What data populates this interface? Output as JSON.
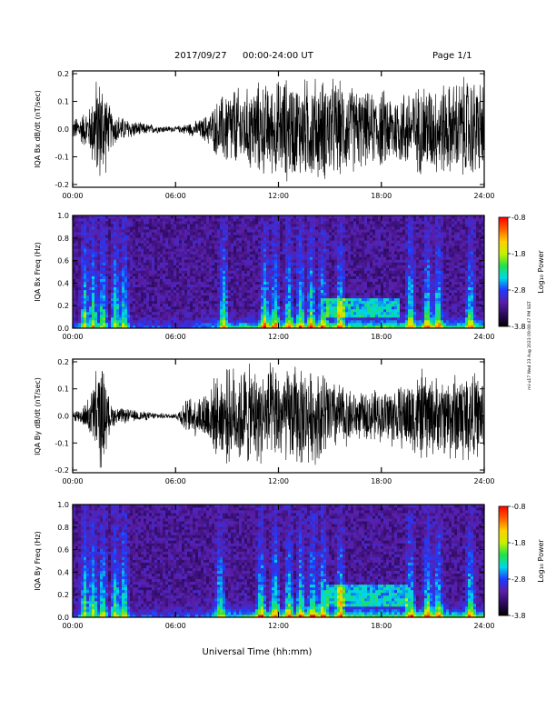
{
  "header": {
    "date": "2017/09/27",
    "time_range": "00:00-24:00 UT",
    "page": "Page 1/1"
  },
  "xlabel": "Universal Time (hh:mm)",
  "side_stamp": "mi-u17 Wed 23 Aug 2023 09:08:47 PM SGT",
  "colors": {
    "waveform": "#000000",
    "spectrogram_background": "#2a1660",
    "colormap": [
      "#000000",
      "#2b0a5e",
      "#5a1ea8",
      "#1f3bff",
      "#00d8e8",
      "#22e04a",
      "#c8f000",
      "#ffd000",
      "#ff6000",
      "#ff0000"
    ]
  },
  "chart_data": [
    {
      "type": "line",
      "ylabel": "IQA Bx dB/dt (nT/sec)",
      "x_ticks": [
        "00:00",
        "06:00",
        "12:00",
        "18:00",
        "24:00"
      ],
      "xlim": [
        0,
        24
      ],
      "y_ticks": [
        "0.2",
        "0.1",
        "0.0",
        "-0.1",
        "-0.2"
      ],
      "y_tick_values": [
        0.2,
        0.1,
        0.0,
        -0.1,
        -0.2
      ],
      "ylim": [
        -0.21,
        0.21
      ],
      "envelope": {
        "hours": [
          0,
          0.5,
          1.0,
          1.3,
          1.5,
          1.75,
          1.9,
          2.0,
          2.3,
          2.6,
          3.0,
          3.5,
          4.0,
          5.0,
          6.0,
          6.8,
          7.5,
          8.0,
          8.5,
          9.0,
          9.5,
          10.0,
          10.5,
          11.0,
          11.5,
          12.0,
          12.5,
          13.0,
          13.5,
          14.0,
          14.5,
          15.0,
          15.5,
          16.0,
          16.5,
          17.0,
          17.5,
          18.0,
          18.5,
          19.0,
          19.5,
          20.0,
          20.5,
          21.0,
          21.5,
          22.0,
          22.5,
          23.0,
          23.5,
          24.0
        ],
        "amplitude": [
          0.04,
          0.06,
          0.09,
          0.2,
          0.21,
          0.21,
          0.2,
          0.12,
          0.07,
          0.06,
          0.045,
          0.035,
          0.025,
          0.015,
          0.01,
          0.025,
          0.04,
          0.07,
          0.12,
          0.16,
          0.17,
          0.15,
          0.18,
          0.19,
          0.17,
          0.2,
          0.21,
          0.19,
          0.2,
          0.21,
          0.2,
          0.21,
          0.19,
          0.18,
          0.17,
          0.15,
          0.14,
          0.16,
          0.15,
          0.14,
          0.17,
          0.16,
          0.2,
          0.17,
          0.19,
          0.18,
          0.2,
          0.21,
          0.2,
          0.19
        ]
      }
    },
    {
      "type": "heatmap",
      "ylabel": "IQA Bx Freq (Hz)",
      "x_ticks": [
        "00:00",
        "06:00",
        "12:00",
        "18:00",
        "24:00"
      ],
      "xlim": [
        0,
        24
      ],
      "y_ticks": [
        "1.0",
        "0.8",
        "0.6",
        "0.4",
        "0.2",
        "0.0"
      ],
      "y_tick_values": [
        1.0,
        0.8,
        0.6,
        0.4,
        0.2,
        0.0
      ],
      "ylim": [
        0,
        1.0
      ],
      "colorbar": {
        "label": "Log₁₀ Power",
        "ticks": [
          "-0.8",
          "-1.8",
          "-2.8",
          "-3.8"
        ],
        "tick_values": [
          -0.8,
          -1.8,
          -2.8,
          -3.8
        ],
        "range": [
          -3.8,
          -0.8
        ]
      },
      "bursts_hours": [
        0.7,
        1.2,
        1.75,
        2.5,
        3.0,
        8.8,
        11.2,
        11.8,
        12.6,
        13.3,
        13.9,
        14.6,
        15.6,
        19.7,
        20.7,
        21.3,
        23.2
      ],
      "band": {
        "hour_start": 14.8,
        "hour_end": 19.0,
        "freq_low": 0.1,
        "freq_high": 0.28
      }
    },
    {
      "type": "line",
      "ylabel": "IQA By dB/dt (nT/sec)",
      "x_ticks": [
        "00:00",
        "06:00",
        "12:00",
        "18:00",
        "24:00"
      ],
      "xlim": [
        0,
        24
      ],
      "y_ticks": [
        "0.2",
        "0.1",
        "0.0",
        "-0.1",
        "-0.2"
      ],
      "y_tick_values": [
        0.2,
        0.1,
        0.0,
        -0.1,
        -0.2
      ],
      "ylim": [
        -0.21,
        0.21
      ],
      "envelope": {
        "hours": [
          0,
          0.5,
          1.0,
          1.3,
          1.5,
          1.75,
          1.9,
          2.0,
          2.3,
          2.6,
          3.0,
          3.5,
          4.0,
          5.0,
          6.0,
          6.5,
          7.0,
          7.5,
          8.0,
          8.5,
          9.0,
          9.5,
          10.0,
          10.5,
          11.0,
          11.5,
          12.0,
          12.5,
          13.0,
          13.5,
          14.0,
          14.5,
          15.0,
          15.5,
          16.0,
          16.5,
          17.0,
          17.5,
          18.0,
          18.5,
          19.0,
          19.5,
          20.0,
          20.5,
          21.0,
          21.5,
          22.0,
          22.5,
          23.0,
          23.5,
          24.0
        ],
        "amplitude": [
          0.025,
          0.03,
          0.08,
          0.18,
          0.21,
          0.21,
          0.2,
          0.1,
          0.045,
          0.035,
          0.03,
          0.025,
          0.02,
          0.012,
          0.01,
          0.06,
          0.08,
          0.09,
          0.14,
          0.16,
          0.19,
          0.2,
          0.21,
          0.2,
          0.19,
          0.21,
          0.2,
          0.19,
          0.21,
          0.2,
          0.18,
          0.2,
          0.16,
          0.14,
          0.12,
          0.1,
          0.09,
          0.11,
          0.1,
          0.13,
          0.12,
          0.15,
          0.17,
          0.19,
          0.16,
          0.15,
          0.18,
          0.19,
          0.2,
          0.17,
          0.15
        ]
      }
    },
    {
      "type": "heatmap",
      "ylabel": "IQA By Freq (Hz)",
      "x_ticks": [
        "00:00",
        "06:00",
        "12:00",
        "18:00",
        "24:00"
      ],
      "xlim": [
        0,
        24
      ],
      "y_ticks": [
        "1.0",
        "0.8",
        "0.6",
        "0.4",
        "0.2",
        "0.0"
      ],
      "y_tick_values": [
        1.0,
        0.8,
        0.6,
        0.4,
        0.2,
        0.0
      ],
      "ylim": [
        0,
        1.0
      ],
      "colorbar": {
        "label": "Log₁₀ Power",
        "ticks": [
          "-0.8",
          "-1.8",
          "-2.8",
          "-3.8"
        ],
        "tick_values": [
          -0.8,
          -1.8,
          -2.8,
          -3.8
        ],
        "range": [
          -3.8,
          -0.8
        ]
      },
      "bursts_hours": [
        0.7,
        1.2,
        1.75,
        2.5,
        3.0,
        8.6,
        11.0,
        11.8,
        12.6,
        13.3,
        14.0,
        14.6,
        15.6,
        19.7,
        20.7,
        21.3,
        23.2
      ],
      "band": {
        "hour_start": 14.8,
        "hour_end": 19.5,
        "freq_low": 0.1,
        "freq_high": 0.3
      }
    }
  ]
}
